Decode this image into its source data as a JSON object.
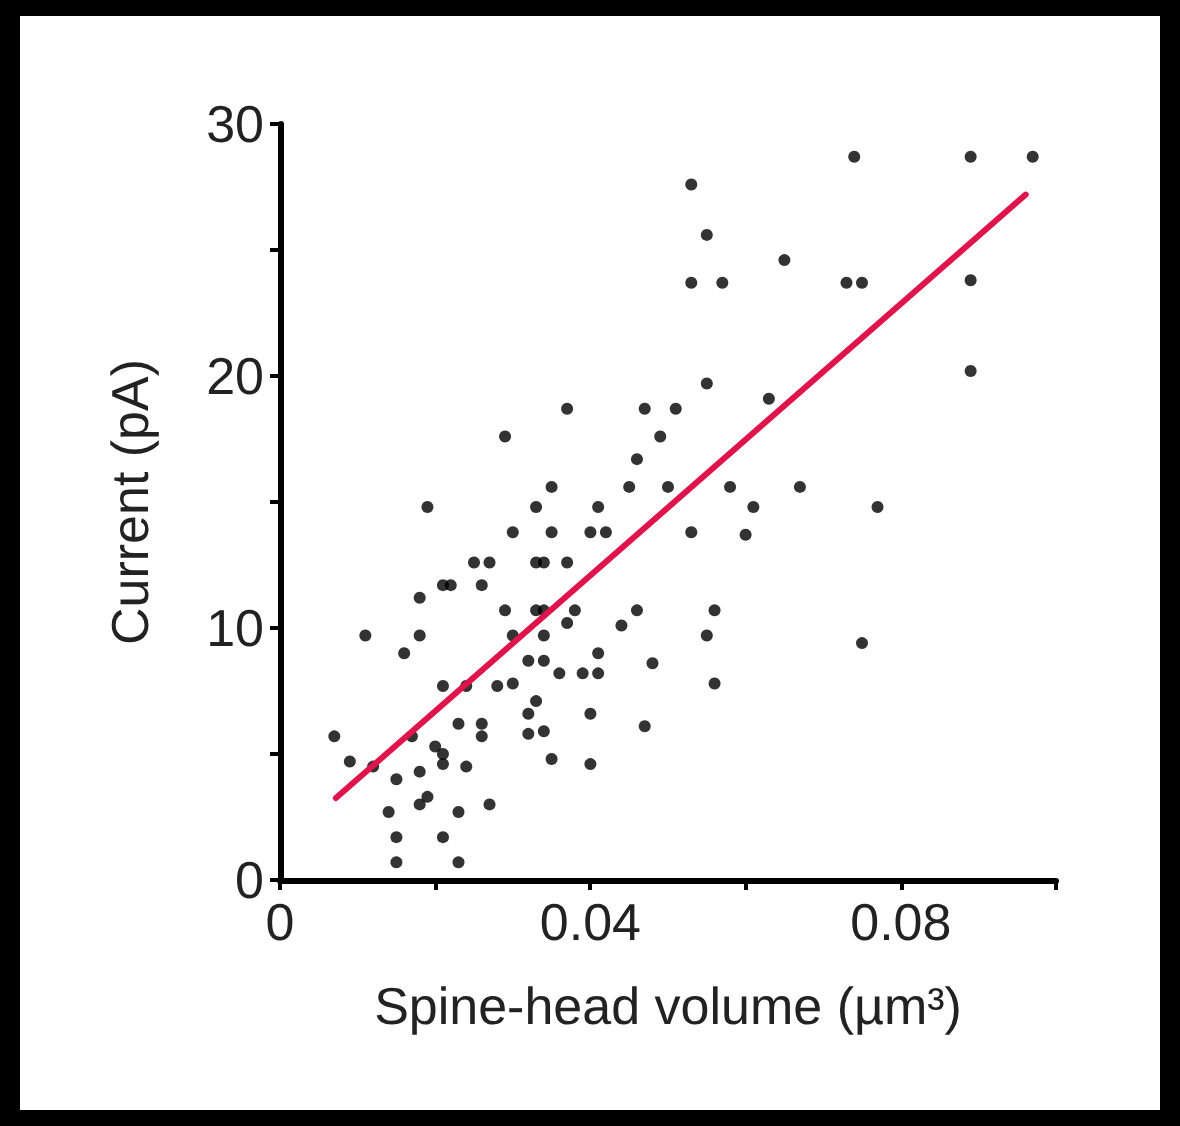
{
  "chart_data": {
    "type": "scatter",
    "xlabel": "Spine-head volume (µm³)",
    "ylabel": "Current (pA)",
    "xlim": [
      0,
      0.1
    ],
    "xticks": [
      0,
      {
        "value": 0.02,
        "label": null
      },
      0.04,
      {
        "value": 0.06,
        "label": null
      },
      0.08,
      {
        "value": 0.1,
        "label": null
      }
    ],
    "ylim": [
      0,
      30
    ],
    "yticks": [
      0,
      {
        "value": 5,
        "label": null
      },
      10,
      {
        "value": 15,
        "label": null
      },
      20,
      {
        "value": 25,
        "label": null
      },
      30
    ],
    "grid": false,
    "marker": "circle",
    "series": [
      {
        "color": "#000000",
        "x": [
          0.074,
          0.089,
          0.097,
          0.053,
          0.055,
          0.065,
          0.053,
          0.057,
          0.073,
          0.075,
          0.089,
          0.089,
          0.055,
          0.063,
          0.047,
          0.051,
          0.037,
          0.049,
          0.029,
          0.046,
          0.045,
          0.05,
          0.058,
          0.067,
          0.035,
          0.061,
          0.077,
          0.019,
          0.033,
          0.041,
          0.03,
          0.035,
          0.04,
          0.042,
          0.053,
          0.06,
          0.025,
          0.027,
          0.033,
          0.034,
          0.037,
          0.021,
          0.022,
          0.026,
          0.018,
          0.029,
          0.033,
          0.034,
          0.038,
          0.037,
          0.046,
          0.044,
          0.011,
          0.018,
          0.03,
          0.034,
          0.016,
          0.032,
          0.034,
          0.041,
          0.048,
          0.036,
          0.039,
          0.041,
          0.021,
          0.024,
          0.028,
          0.03,
          0.033,
          0.032,
          0.04,
          0.047,
          0.023,
          0.026,
          0.026,
          0.007,
          0.032,
          0.034,
          0.017,
          0.02,
          0.021,
          0.009,
          0.012,
          0.018,
          0.021,
          0.024,
          0.035,
          0.04,
          0.015,
          0.019,
          0.018,
          0.023,
          0.014,
          0.027,
          0.015,
          0.021,
          0.015,
          0.023,
          0.055,
          0.056,
          0.056,
          0.075
        ],
        "values": [
          28.7,
          28.7,
          28.7,
          27.6,
          25.6,
          24.6,
          23.7,
          23.7,
          23.7,
          23.7,
          23.8,
          20.2,
          19.7,
          19.1,
          18.7,
          18.7,
          18.7,
          17.6,
          17.6,
          16.7,
          15.6,
          15.6,
          15.6,
          15.6,
          15.6,
          14.8,
          14.8,
          14.8,
          14.8,
          14.8,
          13.8,
          13.8,
          13.8,
          13.8,
          13.8,
          13.7,
          12.6,
          12.6,
          12.6,
          12.6,
          12.6,
          11.7,
          11.7,
          11.7,
          11.2,
          10.7,
          10.7,
          10.7,
          10.7,
          10.2,
          10.7,
          10.1,
          9.7,
          9.7,
          9.7,
          9.7,
          9.0,
          8.7,
          8.7,
          9.0,
          8.6,
          8.2,
          8.2,
          8.2,
          7.7,
          7.7,
          7.7,
          7.8,
          7.1,
          6.6,
          6.6,
          6.1,
          6.2,
          6.2,
          5.7,
          5.7,
          5.8,
          5.9,
          5.7,
          5.3,
          5.0,
          4.7,
          4.5,
          4.3,
          4.6,
          4.5,
          4.8,
          4.6,
          4.0,
          3.3,
          3.0,
          2.7,
          2.7,
          3.0,
          1.7,
          1.7,
          0.7,
          0.7,
          9.7,
          10.7,
          7.8,
          9.4
        ]
      },
      {
        "type": "line",
        "color": "#e0144c",
        "marker": "none",
        "line_style": "solid",
        "x": [
          0.0072,
          0.0961
        ],
        "values": [
          3.25,
          27.2
        ]
      }
    ]
  }
}
